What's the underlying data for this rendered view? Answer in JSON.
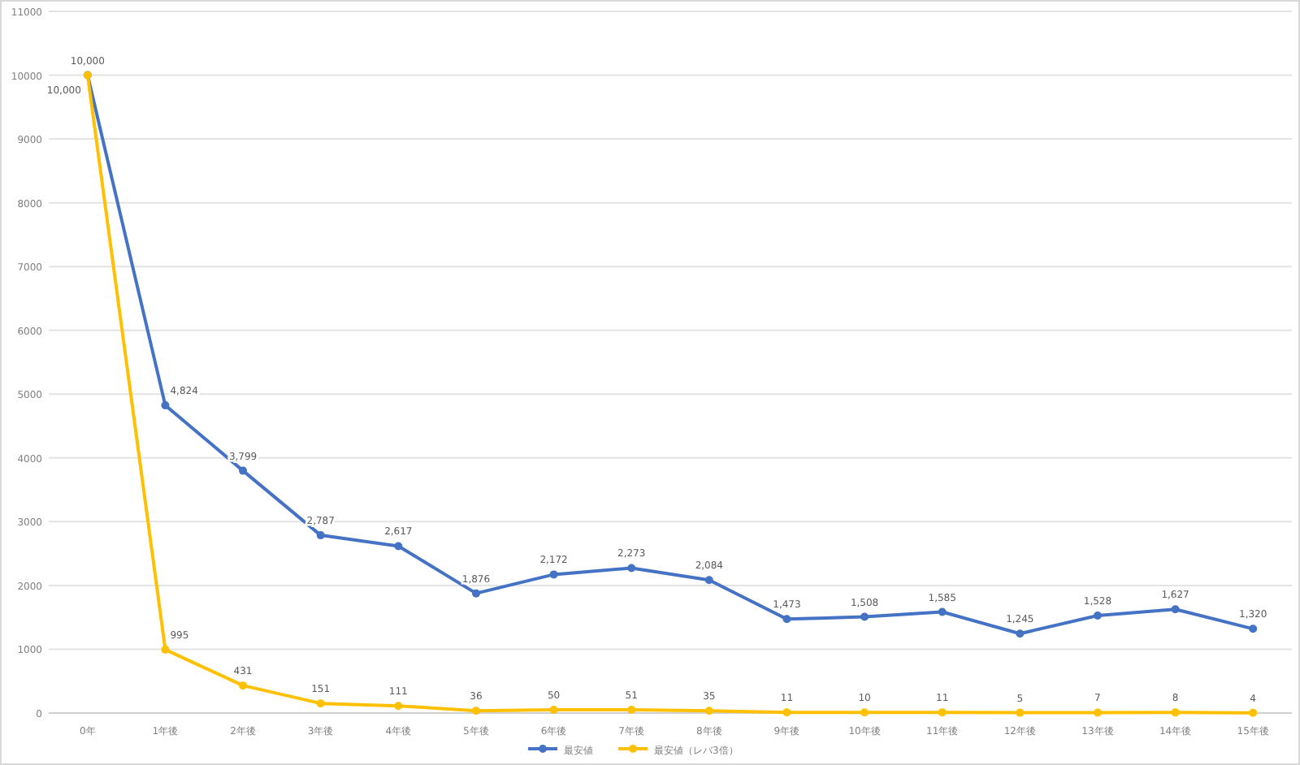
{
  "chart_data": {
    "type": "line",
    "categories": [
      "0年",
      "1年後",
      "2年後",
      "3年後",
      "4年後",
      "5年後",
      "6年後",
      "7年後",
      "8年後",
      "9年後",
      "10年後",
      "11年後",
      "12年後",
      "13年後",
      "14年後",
      "15年後"
    ],
    "series": [
      {
        "name": "最安値",
        "color": "#4472c4",
        "values": [
          10000,
          4824,
          3799,
          2787,
          2617,
          1876,
          2172,
          2273,
          2084,
          1473,
          1508,
          1585,
          1245,
          1528,
          1627,
          1320
        ],
        "value_labels": [
          "10,000",
          "4,824",
          "3,799",
          "2,787",
          "2,617",
          "1,876",
          "2,172",
          "2,273",
          "2,084",
          "1,473",
          "1,508",
          "1,585",
          "1,245",
          "1,528",
          "1,627",
          "1,320"
        ]
      },
      {
        "name": "最安値（レバ3倍）",
        "color": "#ffc000",
        "values": [
          10000,
          995,
          431,
          151,
          111,
          36,
          50,
          51,
          35,
          11,
          10,
          11,
          5,
          7,
          8,
          4
        ],
        "value_labels": [
          "10,000",
          "995",
          "431",
          "151",
          "111",
          "36",
          "50",
          "51",
          "35",
          "11",
          "10",
          "11",
          "5",
          "7",
          "8",
          "4"
        ]
      }
    ],
    "ylim": [
      0,
      11000
    ],
    "yticks": [
      0,
      1000,
      2000,
      3000,
      4000,
      5000,
      6000,
      7000,
      8000,
      9000,
      10000,
      11000
    ],
    "grid": "y",
    "legend": "bottom",
    "marker": "circle"
  }
}
